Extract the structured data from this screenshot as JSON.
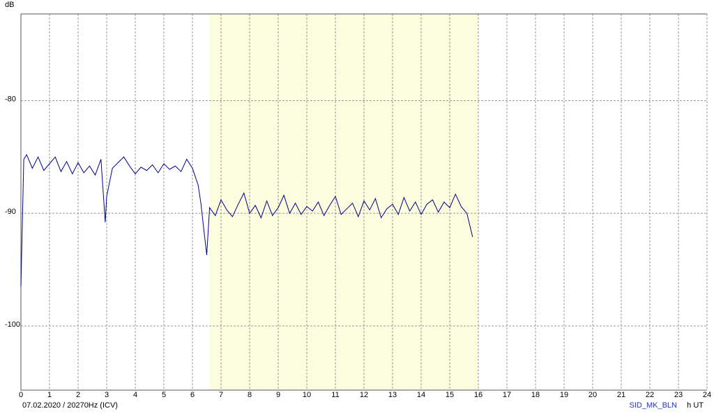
{
  "chart_data": {
    "type": "line",
    "y_label": "dB",
    "x_label": "h UT",
    "footer_left": "07.02.2020 / 20270Hz (ICV)",
    "footer_right": "SID_MK_BLN",
    "xlim": [
      0,
      24
    ],
    "xticks": [
      0,
      1,
      2,
      3,
      4,
      5,
      6,
      7,
      8,
      9,
      10,
      11,
      12,
      13,
      14,
      15,
      16,
      17,
      18,
      19,
      20,
      21,
      22,
      23,
      24
    ],
    "ylim": [
      -105.7,
      -72.3
    ],
    "yticks": [
      -80,
      -90,
      -100
    ],
    "grid": true,
    "shaded_region": [
      6.6,
      16
    ],
    "shaded_color": "#fcfcde",
    "series": [
      {
        "color": "#00008b",
        "x": [
          0,
          0.1,
          0.2,
          0.4,
          0.6,
          0.8,
          1.0,
          1.2,
          1.4,
          1.6,
          1.8,
          2.0,
          2.2,
          2.4,
          2.6,
          2.8,
          2.95,
          3.0,
          3.2,
          3.4,
          3.6,
          3.8,
          4.0,
          4.2,
          4.4,
          4.6,
          4.8,
          5.0,
          5.2,
          5.4,
          5.6,
          5.8,
          6.0,
          6.2,
          6.3,
          6.4,
          6.5,
          6.6,
          6.8,
          7.0,
          7.2,
          7.4,
          7.6,
          7.8,
          8.0,
          8.2,
          8.4,
          8.6,
          8.8,
          9.0,
          9.2,
          9.4,
          9.6,
          9.8,
          10.0,
          10.2,
          10.4,
          10.6,
          10.8,
          11.0,
          11.2,
          11.4,
          11.6,
          11.8,
          12.0,
          12.2,
          12.4,
          12.6,
          12.8,
          13.0,
          13.2,
          13.4,
          13.6,
          13.8,
          14.0,
          14.2,
          14.4,
          14.6,
          14.8,
          15.0,
          15.2,
          15.4,
          15.6,
          15.8
        ],
        "values": [
          -96.5,
          -85.2,
          -84.8,
          -86.0,
          -85.0,
          -86.2,
          -85.6,
          -85.0,
          -86.3,
          -85.4,
          -86.5,
          -85.5,
          -86.4,
          -85.8,
          -86.6,
          -85.2,
          -90.8,
          -88.5,
          -86.0,
          -85.5,
          -85.0,
          -85.8,
          -86.5,
          -85.9,
          -86.2,
          -85.7,
          -86.4,
          -85.6,
          -86.1,
          -85.8,
          -86.3,
          -85.2,
          -86.0,
          -87.5,
          -89.2,
          -91.5,
          -93.7,
          -89.5,
          -90.2,
          -88.8,
          -89.7,
          -90.3,
          -89.2,
          -88.2,
          -90.0,
          -89.3,
          -90.4,
          -88.9,
          -90.2,
          -89.5,
          -88.4,
          -90.0,
          -89.1,
          -90.1,
          -89.4,
          -89.8,
          -89.0,
          -90.2,
          -89.3,
          -88.5,
          -90.1,
          -89.6,
          -89.1,
          -90.3,
          -88.9,
          -89.7,
          -88.7,
          -90.4,
          -89.6,
          -89.2,
          -90.1,
          -88.6,
          -89.8,
          -89.0,
          -90.1,
          -89.2,
          -88.8,
          -89.9,
          -89.0,
          -89.5,
          -88.3,
          -89.4,
          -90.0,
          -92.1
        ]
      }
    ]
  }
}
